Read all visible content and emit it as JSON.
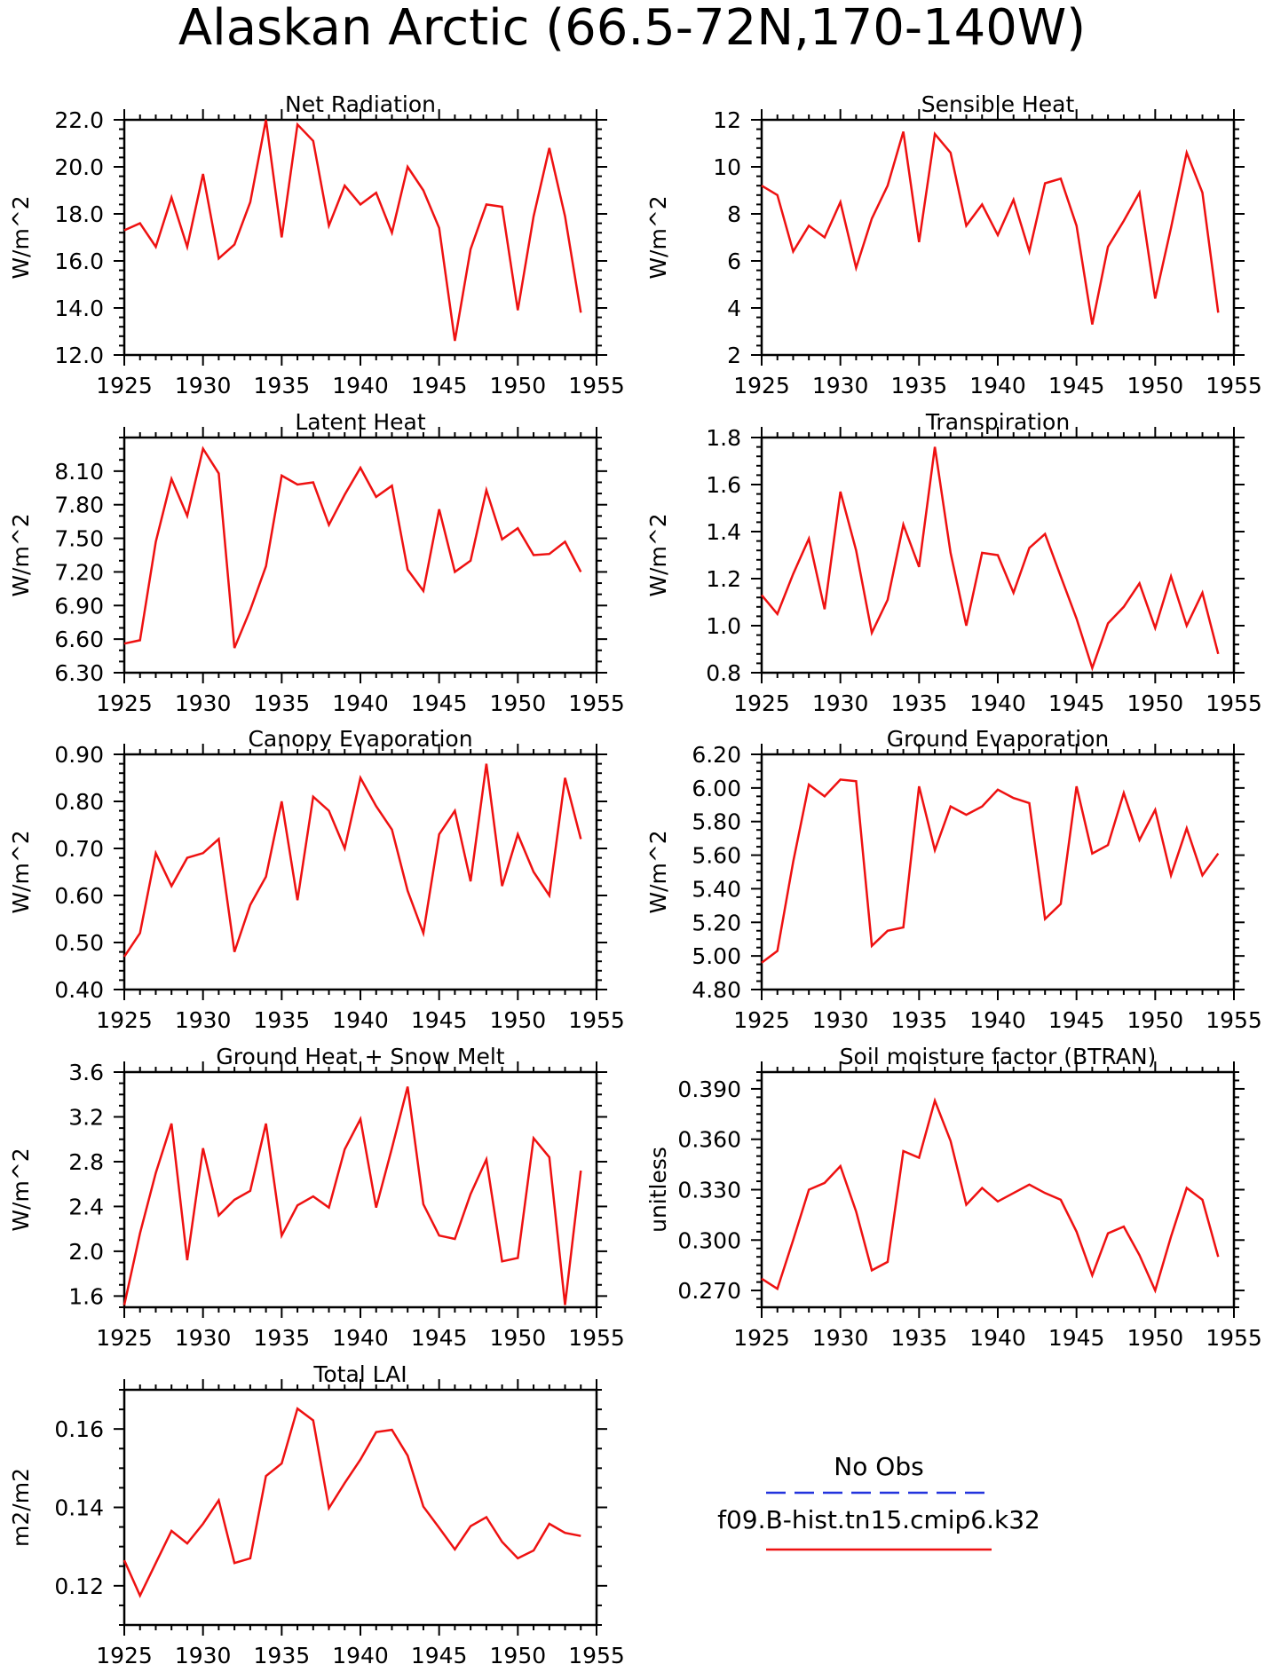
{
  "page_title": "Alaskan Arctic (66.5-72N,170-140W)",
  "legend": {
    "entries": [
      {
        "name": "No Obs",
        "color": "#2233dd",
        "dash": true
      },
      {
        "name": "f09.B-hist.tn15.cmip6.k32",
        "color": "#ee1111",
        "dash": false
      }
    ]
  },
  "chart_data": [
    {
      "type": "line",
      "title": "Net Radiation",
      "ylabel": "W/m^2",
      "xlim": [
        1925,
        1955
      ],
      "ylim": [
        12,
        22
      ],
      "xticks": [
        1925,
        1930,
        1935,
        1940,
        1945,
        1950,
        1955
      ],
      "yticks": [
        12,
        14,
        16,
        18,
        20,
        22
      ],
      "ytick_labels": [
        "12.0",
        "14.0",
        "16.0",
        "18.0",
        "20.0",
        "22.0"
      ],
      "ytick_minor": 0.4,
      "x": [
        1925,
        1926,
        1927,
        1928,
        1929,
        1930,
        1931,
        1932,
        1933,
        1934,
        1935,
        1936,
        1937,
        1938,
        1939,
        1940,
        1941,
        1942,
        1943,
        1944,
        1945,
        1946,
        1947,
        1948,
        1949,
        1950,
        1951,
        1952,
        1953,
        1954
      ],
      "series": [
        {
          "color": "#ee1111",
          "values": [
            17.3,
            17.6,
            16.6,
            18.7,
            16.6,
            19.7,
            16.1,
            16.7,
            18.5,
            22.0,
            17.0,
            21.8,
            21.1,
            17.5,
            19.2,
            18.4,
            18.9,
            17.2,
            20.0,
            19.0,
            17.4,
            12.6,
            16.5,
            18.4,
            18.3,
            13.9,
            17.9,
            20.8,
            17.9,
            13.8
          ]
        }
      ]
    },
    {
      "type": "line",
      "title": "Sensible Heat",
      "ylabel": "W/m^2",
      "xlim": [
        1925,
        1955
      ],
      "ylim": [
        2,
        12
      ],
      "xticks": [
        1925,
        1930,
        1935,
        1940,
        1945,
        1950,
        1955
      ],
      "yticks": [
        2,
        4,
        6,
        8,
        10,
        12
      ],
      "ytick_labels": [
        "2",
        "4",
        "6",
        "8",
        "10",
        "12"
      ],
      "ytick_minor": 0.4,
      "x": [
        1925,
        1926,
        1927,
        1928,
        1929,
        1930,
        1931,
        1932,
        1933,
        1934,
        1935,
        1936,
        1937,
        1938,
        1939,
        1940,
        1941,
        1942,
        1943,
        1944,
        1945,
        1946,
        1947,
        1948,
        1949,
        1950,
        1951,
        1952,
        1953,
        1954
      ],
      "series": [
        {
          "color": "#ee1111",
          "values": [
            9.2,
            8.8,
            6.4,
            7.5,
            7.0,
            8.5,
            5.7,
            7.8,
            9.2,
            11.5,
            6.8,
            11.4,
            10.6,
            7.5,
            8.4,
            7.1,
            8.6,
            6.4,
            9.3,
            9.5,
            7.5,
            3.3,
            6.6,
            7.7,
            8.9,
            4.4,
            7.4,
            10.6,
            8.9,
            3.8
          ]
        }
      ]
    },
    {
      "type": "line",
      "title": "Latent Heat",
      "ylabel": "W/m^2",
      "xlim": [
        1925,
        1955
      ],
      "ylim": [
        6.3,
        8.4
      ],
      "xticks": [
        1925,
        1930,
        1935,
        1940,
        1945,
        1950,
        1955
      ],
      "yticks": [
        6.3,
        6.6,
        6.9,
        7.2,
        7.5,
        7.8,
        8.1
      ],
      "ytick_labels": [
        "6.30",
        "6.60",
        "6.90",
        "7.20",
        "7.50",
        "7.80",
        "8.10"
      ],
      "ytick_minor": 0.1,
      "x": [
        1925,
        1926,
        1927,
        1928,
        1929,
        1930,
        1931,
        1932,
        1933,
        1934,
        1935,
        1936,
        1937,
        1938,
        1939,
        1940,
        1941,
        1942,
        1943,
        1944,
        1945,
        1946,
        1947,
        1948,
        1949,
        1950,
        1951,
        1952,
        1953,
        1954
      ],
      "series": [
        {
          "color": "#ee1111",
          "values": [
            6.56,
            6.59,
            7.47,
            8.03,
            7.7,
            8.3,
            8.08,
            6.52,
            6.86,
            7.25,
            8.06,
            7.98,
            8.0,
            7.62,
            7.89,
            8.13,
            7.87,
            7.97,
            7.22,
            7.03,
            7.76,
            7.2,
            7.3,
            7.93,
            7.49,
            7.59,
            7.35,
            7.36,
            7.47,
            7.2
          ]
        }
      ]
    },
    {
      "type": "line",
      "title": "Transpiration",
      "ylabel": "W/m^2",
      "xlim": [
        1925,
        1955
      ],
      "ylim": [
        0.8,
        1.8
      ],
      "xticks": [
        1925,
        1930,
        1935,
        1940,
        1945,
        1950,
        1955
      ],
      "yticks": [
        0.8,
        1.0,
        1.2,
        1.4,
        1.6,
        1.8
      ],
      "ytick_labels": [
        "0.8",
        "1.0",
        "1.2",
        "1.4",
        "1.6",
        "1.8"
      ],
      "ytick_minor": 0.04,
      "x": [
        1925,
        1926,
        1927,
        1928,
        1929,
        1930,
        1931,
        1932,
        1933,
        1934,
        1935,
        1936,
        1937,
        1938,
        1939,
        1940,
        1941,
        1942,
        1943,
        1944,
        1945,
        1946,
        1947,
        1948,
        1949,
        1950,
        1951,
        1952,
        1953,
        1954
      ],
      "series": [
        {
          "color": "#ee1111",
          "values": [
            1.13,
            1.05,
            1.22,
            1.37,
            1.07,
            1.57,
            1.32,
            0.97,
            1.11,
            1.43,
            1.25,
            1.76,
            1.31,
            1.0,
            1.31,
            1.3,
            1.14,
            1.33,
            1.39,
            1.21,
            1.03,
            0.82,
            1.01,
            1.08,
            1.18,
            0.99,
            1.21,
            1.0,
            1.14,
            0.88
          ]
        }
      ]
    },
    {
      "type": "line",
      "title": "Canopy Evaporation",
      "ylabel": "W/m^2",
      "xlim": [
        1925,
        1955
      ],
      "ylim": [
        0.4,
        0.9
      ],
      "xticks": [
        1925,
        1930,
        1935,
        1940,
        1945,
        1950,
        1955
      ],
      "yticks": [
        0.4,
        0.5,
        0.6,
        0.7,
        0.8,
        0.9
      ],
      "ytick_labels": [
        "0.40",
        "0.50",
        "0.60",
        "0.70",
        "0.80",
        "0.90"
      ],
      "ytick_minor": 0.02,
      "x": [
        1925,
        1926,
        1927,
        1928,
        1929,
        1930,
        1931,
        1932,
        1933,
        1934,
        1935,
        1936,
        1937,
        1938,
        1939,
        1940,
        1941,
        1942,
        1943,
        1944,
        1945,
        1946,
        1947,
        1948,
        1949,
        1950,
        1951,
        1952,
        1953,
        1954
      ],
      "series": [
        {
          "color": "#ee1111",
          "values": [
            0.47,
            0.52,
            0.69,
            0.62,
            0.68,
            0.69,
            0.72,
            0.48,
            0.58,
            0.64,
            0.8,
            0.59,
            0.81,
            0.78,
            0.7,
            0.85,
            0.79,
            0.74,
            0.61,
            0.52,
            0.73,
            0.78,
            0.63,
            0.88,
            0.62,
            0.73,
            0.65,
            0.6,
            0.85,
            0.72
          ]
        }
      ]
    },
    {
      "type": "line",
      "title": "Ground Evaporation",
      "ylabel": "W/m^2",
      "xlim": [
        1925,
        1955
      ],
      "ylim": [
        4.8,
        6.2
      ],
      "xticks": [
        1925,
        1930,
        1935,
        1940,
        1945,
        1950,
        1955
      ],
      "yticks": [
        4.8,
        5.0,
        5.2,
        5.4,
        5.6,
        5.8,
        6.0,
        6.2
      ],
      "ytick_labels": [
        "4.80",
        "5.00",
        "5.20",
        "5.40",
        "5.60",
        "5.80",
        "6.00",
        "6.20"
      ],
      "ytick_minor": 0.05,
      "x": [
        1925,
        1926,
        1927,
        1928,
        1929,
        1930,
        1931,
        1932,
        1933,
        1934,
        1935,
        1936,
        1937,
        1938,
        1939,
        1940,
        1941,
        1942,
        1943,
        1944,
        1945,
        1946,
        1947,
        1948,
        1949,
        1950,
        1951,
        1952,
        1953,
        1954
      ],
      "series": [
        {
          "color": "#ee1111",
          "values": [
            4.96,
            5.03,
            5.56,
            6.02,
            5.95,
            6.05,
            6.04,
            5.06,
            5.15,
            5.17,
            6.01,
            5.63,
            5.89,
            5.84,
            5.89,
            5.99,
            5.94,
            5.91,
            5.22,
            5.31,
            6.01,
            5.61,
            5.66,
            5.97,
            5.69,
            5.87,
            5.48,
            5.76,
            5.48,
            5.61
          ]
        }
      ]
    },
    {
      "type": "line",
      "title": "Ground Heat + Snow Melt",
      "ylabel": "W/m^2",
      "xlim": [
        1925,
        1955
      ],
      "ylim": [
        1.5,
        3.6
      ],
      "xticks": [
        1925,
        1930,
        1935,
        1940,
        1945,
        1950,
        1955
      ],
      "yticks": [
        1.6,
        2.0,
        2.4,
        2.8,
        3.2,
        3.6
      ],
      "ytick_labels": [
        "1.6",
        "2.0",
        "2.4",
        "2.8",
        "3.2",
        "3.6"
      ],
      "ytick_minor": 0.1,
      "x": [
        1925,
        1926,
        1927,
        1928,
        1929,
        1930,
        1931,
        1932,
        1933,
        1934,
        1935,
        1936,
        1937,
        1938,
        1939,
        1940,
        1941,
        1942,
        1943,
        1944,
        1945,
        1946,
        1947,
        1948,
        1949,
        1950,
        1951,
        1952,
        1953,
        1954
      ],
      "series": [
        {
          "color": "#ee1111",
          "values": [
            1.52,
            2.16,
            2.7,
            3.14,
            1.92,
            2.92,
            2.32,
            2.46,
            2.54,
            3.14,
            2.14,
            2.41,
            2.49,
            2.39,
            2.91,
            3.18,
            2.39,
            2.92,
            3.47,
            2.42,
            2.14,
            2.11,
            2.51,
            2.82,
            1.91,
            1.94,
            3.01,
            2.84,
            1.52,
            2.72
          ]
        }
      ]
    },
    {
      "type": "line",
      "title": "Soil moisture factor (BTRAN)",
      "ylabel": "unitless",
      "xlim": [
        1925,
        1955
      ],
      "ylim": [
        0.26,
        0.4
      ],
      "xticks": [
        1925,
        1930,
        1935,
        1940,
        1945,
        1950,
        1955
      ],
      "yticks": [
        0.27,
        0.3,
        0.33,
        0.36,
        0.39
      ],
      "ytick_labels": [
        "0.270",
        "0.300",
        "0.330",
        "0.360",
        "0.390"
      ],
      "ytick_minor": 0.005,
      "x": [
        1925,
        1926,
        1927,
        1928,
        1929,
        1930,
        1931,
        1932,
        1933,
        1934,
        1935,
        1936,
        1937,
        1938,
        1939,
        1940,
        1941,
        1942,
        1943,
        1944,
        1945,
        1946,
        1947,
        1948,
        1949,
        1950,
        1951,
        1952,
        1953,
        1954
      ],
      "series": [
        {
          "color": "#ee1111",
          "values": [
            0.277,
            0.271,
            0.3,
            0.33,
            0.334,
            0.344,
            0.317,
            0.282,
            0.287,
            0.353,
            0.349,
            0.383,
            0.359,
            0.321,
            0.331,
            0.323,
            0.328,
            0.333,
            0.328,
            0.324,
            0.305,
            0.279,
            0.304,
            0.308,
            0.291,
            0.27,
            0.302,
            0.331,
            0.324,
            0.29
          ]
        }
      ]
    },
    {
      "type": "line",
      "title": "Total LAI",
      "ylabel": "m2/m2",
      "xlim": [
        1925,
        1955
      ],
      "ylim": [
        0.11,
        0.17
      ],
      "xticks": [
        1925,
        1930,
        1935,
        1940,
        1945,
        1950,
        1955
      ],
      "yticks": [
        0.12,
        0.14,
        0.16
      ],
      "ytick_labels": [
        "0.12",
        "0.14",
        "0.16"
      ],
      "ytick_minor": 0.005,
      "x": [
        1925,
        1926,
        1927,
        1928,
        1929,
        1930,
        1931,
        1932,
        1933,
        1934,
        1935,
        1936,
        1937,
        1938,
        1939,
        1940,
        1941,
        1942,
        1943,
        1944,
        1945,
        1946,
        1947,
        1948,
        1949,
        1950,
        1951,
        1952,
        1953,
        1954
      ],
      "series": [
        {
          "color": "#ee1111",
          "values": [
            0.1265,
            0.1175,
            0.1258,
            0.134,
            0.1308,
            0.1358,
            0.1418,
            0.1258,
            0.127,
            0.148,
            0.1512,
            0.1652,
            0.1622,
            0.1398,
            0.1462,
            0.1522,
            0.1592,
            0.1598,
            0.1532,
            0.1402,
            0.1348,
            0.1293,
            0.1352,
            0.1375,
            0.1312,
            0.127,
            0.129,
            0.1358,
            0.1335,
            0.1327
          ]
        }
      ]
    }
  ]
}
